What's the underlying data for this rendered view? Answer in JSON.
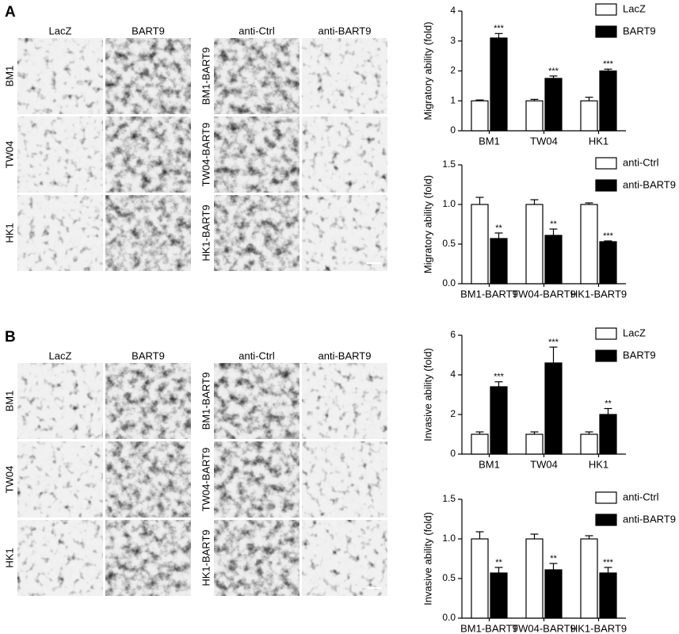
{
  "panels": [
    {
      "label": "A",
      "grids": [
        {
          "columns": [
            "LacZ",
            "BART9"
          ],
          "rows": [
            "BM1",
            "TW04",
            "HK1"
          ]
        },
        {
          "columns": [
            "anti-Ctrl",
            "anti-BART9"
          ],
          "rows": [
            "BM1-BART9",
            "TW04-BART9",
            "HK1-BART9"
          ]
        }
      ]
    },
    {
      "label": "B",
      "grids": [
        {
          "columns": [
            "LacZ",
            "BART9"
          ],
          "rows": [
            "BM1",
            "TW04",
            "HK1"
          ]
        },
        {
          "columns": [
            "anti-Ctrl",
            "anti-BART9"
          ],
          "rows": [
            "BM1-BART9",
            "TW04-BART9",
            "HK1-BART9"
          ]
        }
      ]
    }
  ],
  "chart_data": [
    {
      "type": "bar",
      "ylabel": "Migratory ability (fold)",
      "categories": [
        "BM1",
        "TW04",
        "HK1"
      ],
      "ylim": [
        0,
        4
      ],
      "yticks": [
        0,
        1,
        2,
        3,
        4
      ],
      "series": [
        {
          "name": "LacZ",
          "color": "#ffffff",
          "values": [
            1.0,
            1.0,
            1.0
          ],
          "errors": [
            0.03,
            0.05,
            0.12
          ]
        },
        {
          "name": "BART9",
          "color": "#000000",
          "values": [
            3.1,
            1.75,
            2.0
          ],
          "errors": [
            0.15,
            0.08,
            0.06
          ],
          "annotations": [
            "***",
            "***",
            "***"
          ]
        }
      ]
    },
    {
      "type": "bar",
      "ylabel": "Migratory ability (fold)",
      "categories": [
        "BM1-BART9",
        "TW04-BART9",
        "HK1-BART9"
      ],
      "ylim": [
        0,
        1.5
      ],
      "yticks": [
        {
          "value": 0,
          "label": "0.0"
        },
        0.5,
        {
          "value": 1,
          "label": "1.0"
        },
        1.5
      ],
      "series": [
        {
          "name": "anti-Ctrl",
          "color": "#ffffff",
          "values": [
            1.0,
            1.0,
            1.0
          ],
          "errors": [
            0.09,
            0.06,
            0.02
          ]
        },
        {
          "name": "anti-BART9",
          "color": "#000000",
          "values": [
            0.57,
            0.61,
            0.53
          ],
          "errors": [
            0.07,
            0.08,
            0.01
          ],
          "annotations": [
            "**",
            "**",
            "***"
          ]
        }
      ]
    },
    {
      "type": "bar",
      "ylabel": "Invasive ability (fold)",
      "categories": [
        "BM1",
        "TW04",
        "HK1"
      ],
      "ylim": [
        0,
        6
      ],
      "yticks": [
        0,
        2,
        4,
        6
      ],
      "series": [
        {
          "name": "LacZ",
          "color": "#ffffff",
          "values": [
            1.0,
            1.0,
            1.0
          ],
          "errors": [
            0.12,
            0.12,
            0.12
          ]
        },
        {
          "name": "BART9",
          "color": "#000000",
          "values": [
            3.4,
            4.6,
            2.0
          ],
          "errors": [
            0.25,
            0.8,
            0.3
          ],
          "annotations": [
            "***",
            "***",
            "**"
          ]
        }
      ]
    },
    {
      "type": "bar",
      "ylabel": "Invasive ability (fold)",
      "categories": [
        "BM1-BART9",
        "TW04-BART9",
        "HK1-BART9"
      ],
      "ylim": [
        0,
        1.5
      ],
      "yticks": [
        {
          "value": 0,
          "label": "0.0"
        },
        0.5,
        {
          "value": 1,
          "label": "1.0"
        },
        1.5
      ],
      "series": [
        {
          "name": "anti-Ctrl",
          "color": "#ffffff",
          "values": [
            1.0,
            1.0,
            1.0
          ],
          "errors": [
            0.09,
            0.06,
            0.04
          ]
        },
        {
          "name": "anti-BART9",
          "color": "#000000",
          "values": [
            0.57,
            0.61,
            0.57
          ],
          "errors": [
            0.07,
            0.08,
            0.07
          ],
          "annotations": [
            "**",
            "**",
            "***"
          ]
        }
      ]
    }
  ]
}
